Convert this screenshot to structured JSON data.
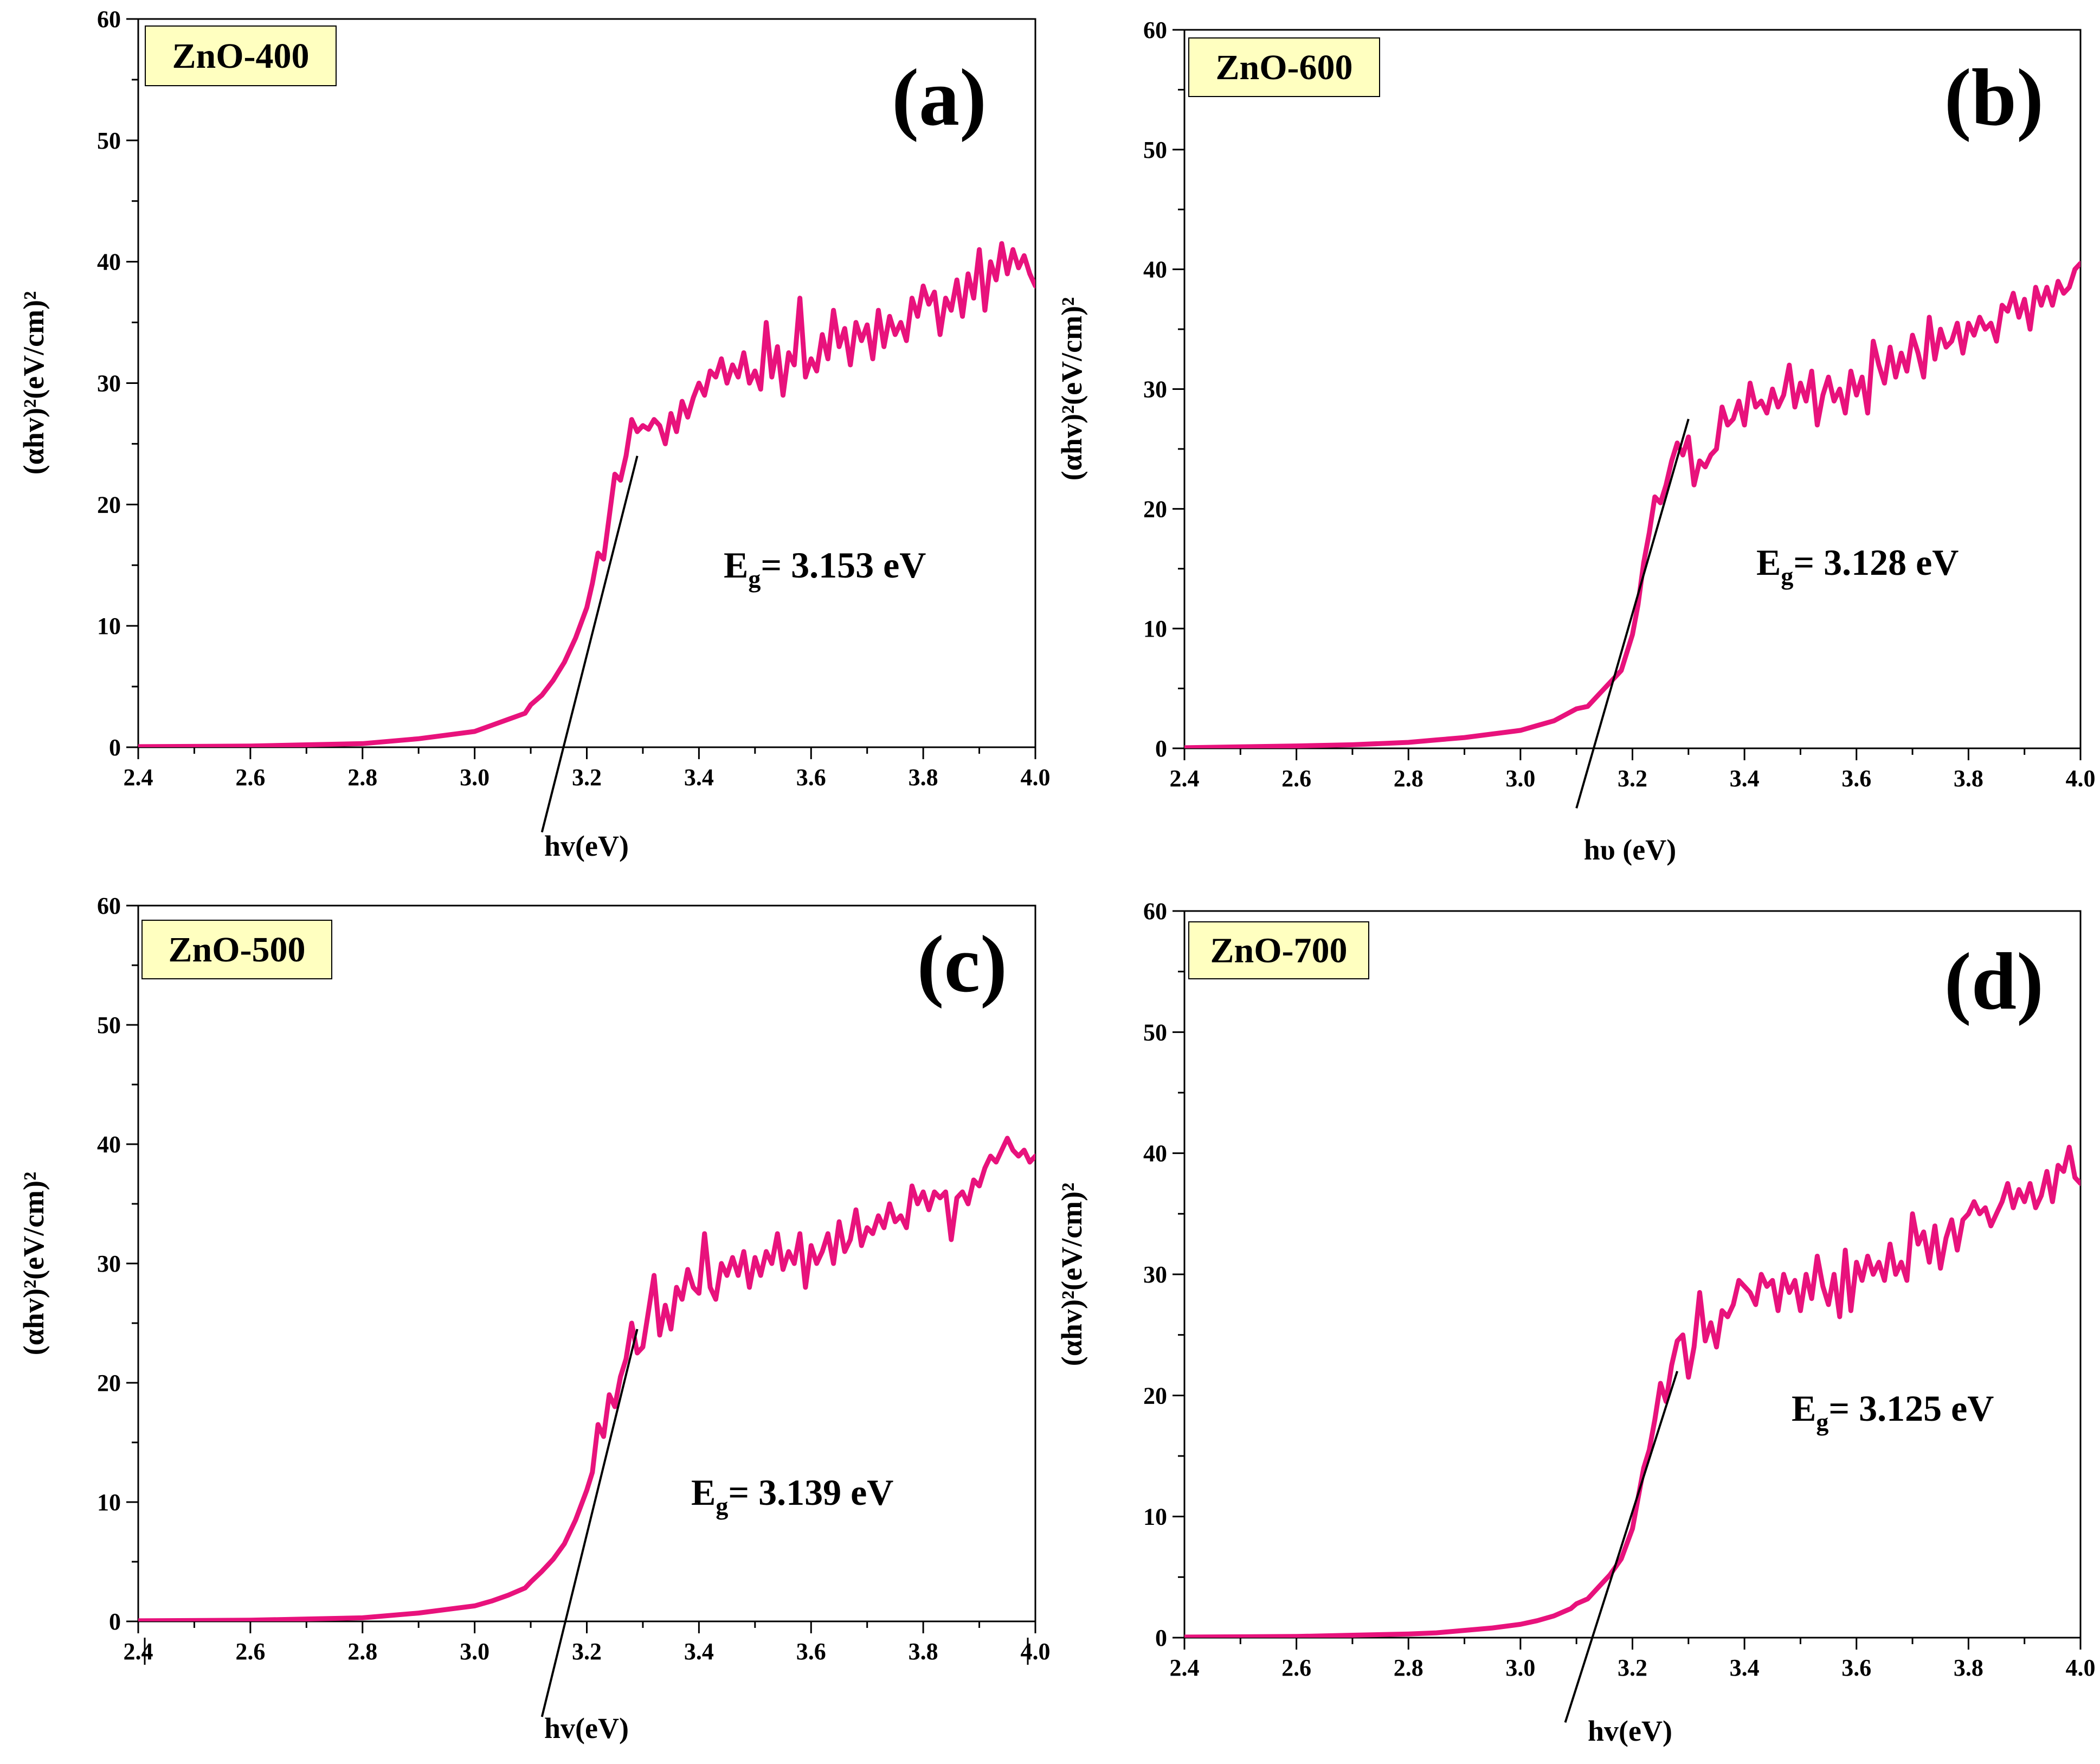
{
  "figure": {
    "accent_color": "#e8127c",
    "label_box_color": "#ffffc0"
  },
  "chart_data": [
    {
      "type": "line",
      "panel_letter": "(a)",
      "sample_label": "ZnO-400",
      "band_gap_prefix": "E",
      "band_gap_subscript": "g",
      "band_gap_value": "= 3.153 eV",
      "xlabel": "hv(eV)",
      "ylabel": "(αhv)²(eV/cm)²",
      "xlim": [
        2.4,
        4.0
      ],
      "ylim": [
        0,
        60
      ],
      "x_ticks": [
        "2.4",
        "2.6",
        "2.8",
        "3.0",
        "3.2",
        "3.4",
        "3.6",
        "3.8",
        "4.0"
      ],
      "y_ticks": [
        "0",
        "10",
        "20",
        "30",
        "40",
        "50",
        "60"
      ],
      "tangent": {
        "x1": 3.12,
        "y1": -7,
        "x2": 3.29,
        "y2": 24
      },
      "series": [
        {
          "name": "ZnO-400",
          "x": [
            2.4,
            2.6,
            2.7,
            2.8,
            2.85,
            2.9,
            2.95,
            3.0,
            3.03,
            3.06,
            3.09,
            3.1,
            3.12,
            3.14,
            3.16,
            3.18,
            3.2,
            3.21,
            3.22,
            3.23,
            3.24,
            3.25,
            3.26,
            3.27,
            3.28,
            3.29,
            3.3,
            3.31,
            3.32,
            3.33,
            3.34,
            3.35,
            3.36,
            3.37,
            3.38,
            3.39,
            3.4,
            3.41,
            3.42,
            3.43,
            3.44,
            3.45,
            3.46,
            3.47,
            3.48,
            3.49,
            3.5,
            3.51,
            3.52,
            3.53,
            3.54,
            3.55,
            3.56,
            3.57,
            3.58,
            3.59,
            3.6,
            3.61,
            3.62,
            3.63,
            3.64,
            3.65,
            3.66,
            3.67,
            3.68,
            3.69,
            3.7,
            3.71,
            3.72,
            3.73,
            3.74,
            3.75,
            3.76,
            3.77,
            3.78,
            3.79,
            3.8,
            3.81,
            3.82,
            3.83,
            3.84,
            3.85,
            3.86,
            3.87,
            3.88,
            3.89,
            3.9,
            3.91,
            3.92,
            3.93,
            3.94,
            3.95,
            3.96,
            3.97,
            3.98,
            3.99,
            4.0
          ],
          "values": [
            0.05,
            0.1,
            0.2,
            0.3,
            0.5,
            0.7,
            1.0,
            1.3,
            1.8,
            2.3,
            2.8,
            3.5,
            4.3,
            5.5,
            7.0,
            9.0,
            11.5,
            13.5,
            16.0,
            15.5,
            19.0,
            22.5,
            22.0,
            24.0,
            27.0,
            26.0,
            26.5,
            26.2,
            27.0,
            26.5,
            25.0,
            27.5,
            26.0,
            28.5,
            27.2,
            28.8,
            30.0,
            29.0,
            31.0,
            30.5,
            32.0,
            30.0,
            31.5,
            30.5,
            32.5,
            30.0,
            31.0,
            29.5,
            35.0,
            30.5,
            33.0,
            29.0,
            32.5,
            31.5,
            37.0,
            30.5,
            32.0,
            31.0,
            34.0,
            32.0,
            36.0,
            33.0,
            34.5,
            31.5,
            35.0,
            33.5,
            34.8,
            32.0,
            36.0,
            33.0,
            35.5,
            34.0,
            35.0,
            33.5,
            37.0,
            35.5,
            38.0,
            36.5,
            37.5,
            34.0,
            37.0,
            36.0,
            38.5,
            35.5,
            39.0,
            37.0,
            41.0,
            36.0,
            40.0,
            38.5,
            41.5,
            39.0,
            41.0,
            39.5,
            40.5,
            39.0,
            38.0
          ]
        }
      ]
    },
    {
      "type": "line",
      "panel_letter": "(b)",
      "sample_label": "ZnO-600",
      "band_gap_prefix": "E",
      "band_gap_subscript": "g",
      "band_gap_value": "= 3.128 eV",
      "xlabel": "hυ (eV)",
      "ylabel": "(αhv)²(eV/cm)²",
      "xlim": [
        2.4,
        4.0
      ],
      "ylim": [
        0,
        60
      ],
      "x_ticks": [
        "2.4",
        "2.6",
        "2.8",
        "3.0",
        "3.2",
        "3.4",
        "3.6",
        "3.8",
        "4.0"
      ],
      "y_ticks": [
        "0",
        "10",
        "20",
        "30",
        "40",
        "50",
        "60"
      ],
      "tangent": {
        "x1": 3.1,
        "y1": -5,
        "x2": 3.3,
        "y2": 27.5
      },
      "series": [
        {
          "name": "ZnO-600",
          "x": [
            2.4,
            2.6,
            2.7,
            2.8,
            2.85,
            2.9,
            2.95,
            3.0,
            3.03,
            3.06,
            3.08,
            3.1,
            3.12,
            3.14,
            3.16,
            3.18,
            3.2,
            3.21,
            3.22,
            3.23,
            3.24,
            3.25,
            3.26,
            3.27,
            3.28,
            3.29,
            3.3,
            3.31,
            3.32,
            3.33,
            3.34,
            3.35,
            3.36,
            3.37,
            3.38,
            3.39,
            3.4,
            3.41,
            3.42,
            3.43,
            3.44,
            3.45,
            3.46,
            3.47,
            3.48,
            3.49,
            3.5,
            3.51,
            3.52,
            3.53,
            3.54,
            3.55,
            3.56,
            3.57,
            3.58,
            3.59,
            3.6,
            3.61,
            3.62,
            3.63,
            3.64,
            3.65,
            3.66,
            3.67,
            3.68,
            3.69,
            3.7,
            3.71,
            3.72,
            3.73,
            3.74,
            3.75,
            3.76,
            3.77,
            3.78,
            3.79,
            3.8,
            3.81,
            3.82,
            3.83,
            3.84,
            3.85,
            3.86,
            3.87,
            3.88,
            3.89,
            3.9,
            3.91,
            3.92,
            3.93,
            3.94,
            3.95,
            3.96,
            3.97,
            3.98,
            3.99,
            4.0
          ],
          "values": [
            0.05,
            0.2,
            0.3,
            0.5,
            0.7,
            0.9,
            1.2,
            1.5,
            1.9,
            2.3,
            2.8,
            3.3,
            3.5,
            4.5,
            5.5,
            6.5,
            9.5,
            12.0,
            15.5,
            18.0,
            21.0,
            20.5,
            22.0,
            24.0,
            25.5,
            24.5,
            26.0,
            22.0,
            24.0,
            23.5,
            24.5,
            25.0,
            28.5,
            27.0,
            27.5,
            29.0,
            27.0,
            30.5,
            28.5,
            29.0,
            28.0,
            30.0,
            28.5,
            29.5,
            32.0,
            28.5,
            30.5,
            29.0,
            31.5,
            27.0,
            29.5,
            31.0,
            29.0,
            30.0,
            28.0,
            31.5,
            29.5,
            31.0,
            28.0,
            34.0,
            32.0,
            30.5,
            33.5,
            31.0,
            33.0,
            31.5,
            34.5,
            33.0,
            31.0,
            36.0,
            32.5,
            35.0,
            33.5,
            34.0,
            35.5,
            33.0,
            35.5,
            34.5,
            36.0,
            35.0,
            35.5,
            34.0,
            37.0,
            36.5,
            38.0,
            36.0,
            37.5,
            35.0,
            38.5,
            37.0,
            38.5,
            37.0,
            39.0,
            38.0,
            38.5,
            40.0,
            40.5
          ]
        }
      ]
    },
    {
      "type": "line",
      "panel_letter": "(c)",
      "sample_label": "ZnO-500",
      "band_gap_prefix": "E",
      "band_gap_subscript": "g",
      "band_gap_value": "= 3.139 eV",
      "xlabel": "hv(eV)",
      "ylabel": "(αhv)²(eV/cm)²",
      "xlim": [
        2.4,
        4.0
      ],
      "ylim": [
        0,
        60
      ],
      "x_ticks": [
        "2.4",
        "2.6",
        "2.8",
        "3.0",
        "3.2",
        "3.4",
        "3.6",
        "3.8",
        "4.0"
      ],
      "y_ticks": [
        "0",
        "10",
        "20",
        "30",
        "40",
        "50",
        "60"
      ],
      "tangent": {
        "x1": 3.12,
        "y1": -8,
        "x2": 3.29,
        "y2": 24.5
      },
      "series": [
        {
          "name": "ZnO-500",
          "x": [
            2.4,
            2.6,
            2.7,
            2.8,
            2.85,
            2.9,
            2.95,
            3.0,
            3.03,
            3.06,
            3.09,
            3.1,
            3.12,
            3.14,
            3.16,
            3.18,
            3.2,
            3.21,
            3.22,
            3.23,
            3.24,
            3.25,
            3.26,
            3.27,
            3.28,
            3.29,
            3.3,
            3.31,
            3.32,
            3.33,
            3.34,
            3.35,
            3.36,
            3.37,
            3.38,
            3.39,
            3.4,
            3.41,
            3.42,
            3.43,
            3.44,
            3.45,
            3.46,
            3.47,
            3.48,
            3.49,
            3.5,
            3.51,
            3.52,
            3.53,
            3.54,
            3.55,
            3.56,
            3.57,
            3.58,
            3.59,
            3.6,
            3.61,
            3.62,
            3.63,
            3.64,
            3.65,
            3.66,
            3.67,
            3.68,
            3.69,
            3.7,
            3.71,
            3.72,
            3.73,
            3.74,
            3.75,
            3.76,
            3.77,
            3.78,
            3.79,
            3.8,
            3.81,
            3.82,
            3.83,
            3.84,
            3.85,
            3.86,
            3.87,
            3.88,
            3.89,
            3.9,
            3.91,
            3.92,
            3.93,
            3.94,
            3.95,
            3.96,
            3.97,
            3.98,
            3.99,
            4.0
          ],
          "values": [
            0.05,
            0.1,
            0.2,
            0.3,
            0.5,
            0.7,
            1.0,
            1.3,
            1.7,
            2.2,
            2.8,
            3.3,
            4.2,
            5.2,
            6.5,
            8.5,
            11.0,
            12.5,
            16.5,
            15.5,
            19.0,
            18.0,
            20.5,
            22.0,
            25.0,
            22.5,
            23.0,
            26.0,
            29.0,
            24.0,
            26.5,
            24.5,
            28.0,
            27.0,
            29.5,
            28.0,
            27.5,
            32.5,
            28.0,
            27.0,
            30.0,
            29.0,
            30.5,
            29.0,
            31.0,
            28.0,
            30.5,
            29.0,
            31.0,
            30.0,
            32.5,
            29.5,
            31.0,
            30.0,
            32.5,
            28.0,
            31.5,
            30.0,
            31.0,
            32.5,
            30.0,
            33.5,
            31.0,
            32.0,
            34.5,
            31.5,
            33.0,
            32.5,
            34.0,
            33.0,
            35.0,
            33.5,
            34.0,
            33.0,
            36.5,
            35.0,
            36.0,
            34.5,
            36.0,
            35.5,
            36.0,
            32.0,
            35.5,
            36.0,
            35.0,
            37.0,
            36.5,
            38.0,
            39.0,
            38.5,
            39.5,
            40.5,
            39.5,
            39.0,
            39.5,
            38.5,
            39.0
          ]
        }
      ]
    },
    {
      "type": "line",
      "panel_letter": "(d)",
      "sample_label": "ZnO-700",
      "band_gap_prefix": "E",
      "band_gap_subscript": "g",
      "band_gap_value": "= 3.125 eV",
      "xlabel": "hv(eV)",
      "ylabel": "(αhv)²(eV/cm)²",
      "xlim": [
        2.4,
        4.0
      ],
      "ylim": [
        0,
        60
      ],
      "x_ticks": [
        "2.4",
        "2.6",
        "2.8",
        "3.0",
        "3.2",
        "3.4",
        "3.6",
        "3.8",
        "4.0"
      ],
      "y_ticks": [
        "0",
        "10",
        "20",
        "30",
        "40",
        "50",
        "60"
      ],
      "tangent": {
        "x1": 3.08,
        "y1": -7,
        "x2": 3.28,
        "y2": 22
      },
      "series": [
        {
          "name": "ZnO-700",
          "x": [
            2.4,
            2.6,
            2.7,
            2.8,
            2.85,
            2.9,
            2.95,
            3.0,
            3.03,
            3.06,
            3.09,
            3.1,
            3.12,
            3.14,
            3.16,
            3.18,
            3.2,
            3.21,
            3.22,
            3.23,
            3.24,
            3.25,
            3.26,
            3.27,
            3.28,
            3.29,
            3.3,
            3.31,
            3.32,
            3.33,
            3.34,
            3.35,
            3.36,
            3.37,
            3.38,
            3.39,
            3.4,
            3.41,
            3.42,
            3.43,
            3.44,
            3.45,
            3.46,
            3.47,
            3.48,
            3.49,
            3.5,
            3.51,
            3.52,
            3.53,
            3.54,
            3.55,
            3.56,
            3.57,
            3.58,
            3.59,
            3.6,
            3.61,
            3.62,
            3.63,
            3.64,
            3.65,
            3.66,
            3.67,
            3.68,
            3.69,
            3.7,
            3.71,
            3.72,
            3.73,
            3.74,
            3.75,
            3.76,
            3.77,
            3.78,
            3.79,
            3.8,
            3.81,
            3.82,
            3.83,
            3.84,
            3.85,
            3.86,
            3.87,
            3.88,
            3.89,
            3.9,
            3.91,
            3.92,
            3.93,
            3.94,
            3.95,
            3.96,
            3.97,
            3.98,
            3.99,
            4.0
          ],
          "values": [
            0.05,
            0.1,
            0.2,
            0.3,
            0.4,
            0.6,
            0.8,
            1.1,
            1.4,
            1.8,
            2.4,
            2.8,
            3.2,
            4.2,
            5.2,
            6.5,
            9.0,
            11.5,
            14.0,
            15.5,
            18.0,
            21.0,
            19.5,
            22.5,
            24.5,
            25.0,
            21.5,
            24.0,
            28.5,
            24.5,
            26.0,
            24.0,
            27.0,
            26.5,
            27.5,
            29.5,
            29.0,
            28.5,
            27.5,
            30.0,
            29.0,
            29.5,
            27.0,
            30.0,
            28.5,
            29.5,
            27.0,
            30.0,
            28.0,
            31.5,
            29.0,
            27.5,
            30.0,
            26.5,
            32.0,
            27.0,
            31.0,
            29.5,
            31.5,
            30.0,
            31.0,
            29.5,
            32.5,
            30.0,
            31.0,
            29.5,
            35.0,
            32.5,
            33.5,
            31.0,
            34.0,
            30.5,
            33.0,
            34.5,
            32.0,
            34.5,
            35.0,
            36.0,
            35.0,
            35.5,
            34.0,
            35.0,
            36.0,
            37.5,
            35.5,
            37.0,
            36.0,
            37.5,
            35.5,
            36.5,
            38.5,
            36.0,
            39.0,
            38.5,
            40.5,
            38.0,
            37.5
          ]
        }
      ]
    }
  ]
}
